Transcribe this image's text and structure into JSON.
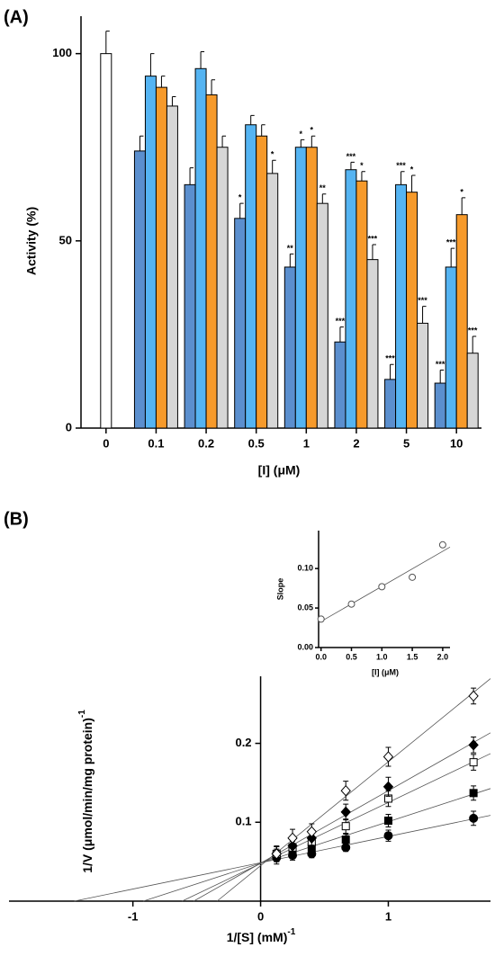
{
  "chart_data": [
    {
      "type": "bar",
      "panel_label": "(A)",
      "x_label": "[I] (μM)",
      "y_label": "Activity (%)",
      "categories": [
        "0",
        "0.1",
        "0.2",
        "0.5",
        "1",
        "2",
        "5",
        "10"
      ],
      "ylim": [
        0,
        110
      ],
      "yticks": [
        0,
        50,
        100
      ],
      "series": [
        {
          "color": "#ffffff",
          "values": [
            100,
            null,
            null,
            null,
            null,
            null,
            null,
            null
          ],
          "errors": [
            6,
            null,
            null,
            null,
            null,
            null,
            null,
            null
          ],
          "annotations": [
            null,
            null,
            null,
            null,
            null,
            null,
            null,
            null
          ]
        },
        {
          "color": "#5b8fce",
          "values": [
            null,
            74,
            65,
            56,
            43,
            23,
            13,
            12
          ],
          "errors": [
            null,
            4,
            4.5,
            4,
            3.5,
            4,
            4,
            3.5
          ],
          "annotations": [
            null,
            null,
            null,
            "*",
            "**",
            "***",
            "***",
            "***"
          ]
        },
        {
          "color": "#55b4f2",
          "values": [
            null,
            94,
            96,
            81,
            75,
            69,
            65,
            43
          ],
          "errors": [
            null,
            6,
            4.5,
            2.5,
            2,
            2,
            3.5,
            5
          ],
          "annotations": [
            null,
            null,
            null,
            null,
            "*",
            "***",
            "***",
            "***"
          ]
        },
        {
          "color": "#f69a2b",
          "values": [
            null,
            91,
            89,
            78,
            75,
            66,
            63,
            57
          ],
          "errors": [
            null,
            3,
            4,
            3,
            3,
            2.5,
            4.5,
            4.5
          ],
          "annotations": [
            null,
            null,
            null,
            null,
            "*",
            "*",
            "*",
            "*"
          ]
        },
        {
          "color": "#d6d6d6",
          "values": [
            null,
            86,
            75,
            68,
            60,
            45,
            28,
            20
          ],
          "errors": [
            null,
            2.5,
            3,
            3.5,
            2.5,
            4,
            4.5,
            4.5
          ],
          "annotations": [
            null,
            null,
            null,
            "*",
            "**",
            "***",
            "***",
            "***"
          ]
        }
      ]
    },
    {
      "type": "line",
      "panel_label": "(B)",
      "x_label": "1/[S] (mM)",
      "x_label_exponent": "-1",
      "y_label": "1/V (μmol/min/mg protein)",
      "y_label_exponent": "-1",
      "fit": true,
      "x": [
        0.125,
        0.25,
        0.4,
        0.667,
        1,
        1.667
      ],
      "xlim": [
        -1.97,
        1.8
      ],
      "ylim": [
        0,
        0.285
      ],
      "xticks": [
        -1,
        0,
        1
      ],
      "yticks": [
        0.1,
        0.2
      ],
      "series": [
        {
          "color": "#000000",
          "marker": "circle",
          "filled": true,
          "values": [
            0.055,
            0.058,
            0.06,
            0.068,
            0.083,
            0.105
          ],
          "errors": [
            0.008,
            0.006,
            0.005,
            0.005,
            0.007,
            0.009
          ]
        },
        {
          "color": "#000000",
          "marker": "square",
          "filled": true,
          "values": [
            0.058,
            0.062,
            0.068,
            0.078,
            0.102,
            0.137
          ],
          "errors": [
            0.008,
            0.007,
            0.006,
            0.007,
            0.008,
            0.009
          ]
        },
        {
          "color": "#000000",
          "marker": "square",
          "filled": false,
          "values": [
            0.06,
            0.068,
            0.075,
            0.095,
            0.13,
            0.176
          ],
          "errors": [
            0.009,
            0.008,
            0.008,
            0.009,
            0.01,
            0.01
          ]
        },
        {
          "color": "#000000",
          "marker": "diamond",
          "filled": true,
          "values": [
            0.06,
            0.07,
            0.08,
            0.113,
            0.145,
            0.198
          ],
          "errors": [
            0.009,
            0.009,
            0.009,
            0.01,
            0.012,
            0.01
          ]
        },
        {
          "color": "#000000",
          "marker": "diamond",
          "filled": false,
          "values": [
            0.06,
            0.08,
            0.088,
            0.14,
            0.183,
            0.26
          ],
          "errors": [
            0.01,
            0.011,
            0.01,
            0.012,
            0.012,
            0.01
          ]
        }
      ]
    },
    {
      "type": "scatter",
      "x_label": "[I] (μM)",
      "y_label": "Slope",
      "fit": true,
      "color": "#555555",
      "x": [
        0,
        0.5,
        1,
        1.5,
        2
      ],
      "values": [
        0.036,
        0.055,
        0.077,
        0.089,
        0.13
      ],
      "xlim": [
        -0.04,
        2.12
      ],
      "ylim": [
        0,
        0.148
      ],
      "xticks": [
        {
          "value": 0,
          "label": "0.0"
        },
        0.5,
        {
          "value": 1,
          "label": "1.0"
        },
        1.5,
        {
          "value": 2,
          "label": "2.0"
        }
      ],
      "yticks": [
        {
          "value": 0,
          "label": "0.00"
        },
        {
          "value": 0.05,
          "label": "0.05"
        },
        {
          "value": 0.1,
          "label": "0.10"
        }
      ]
    }
  ]
}
